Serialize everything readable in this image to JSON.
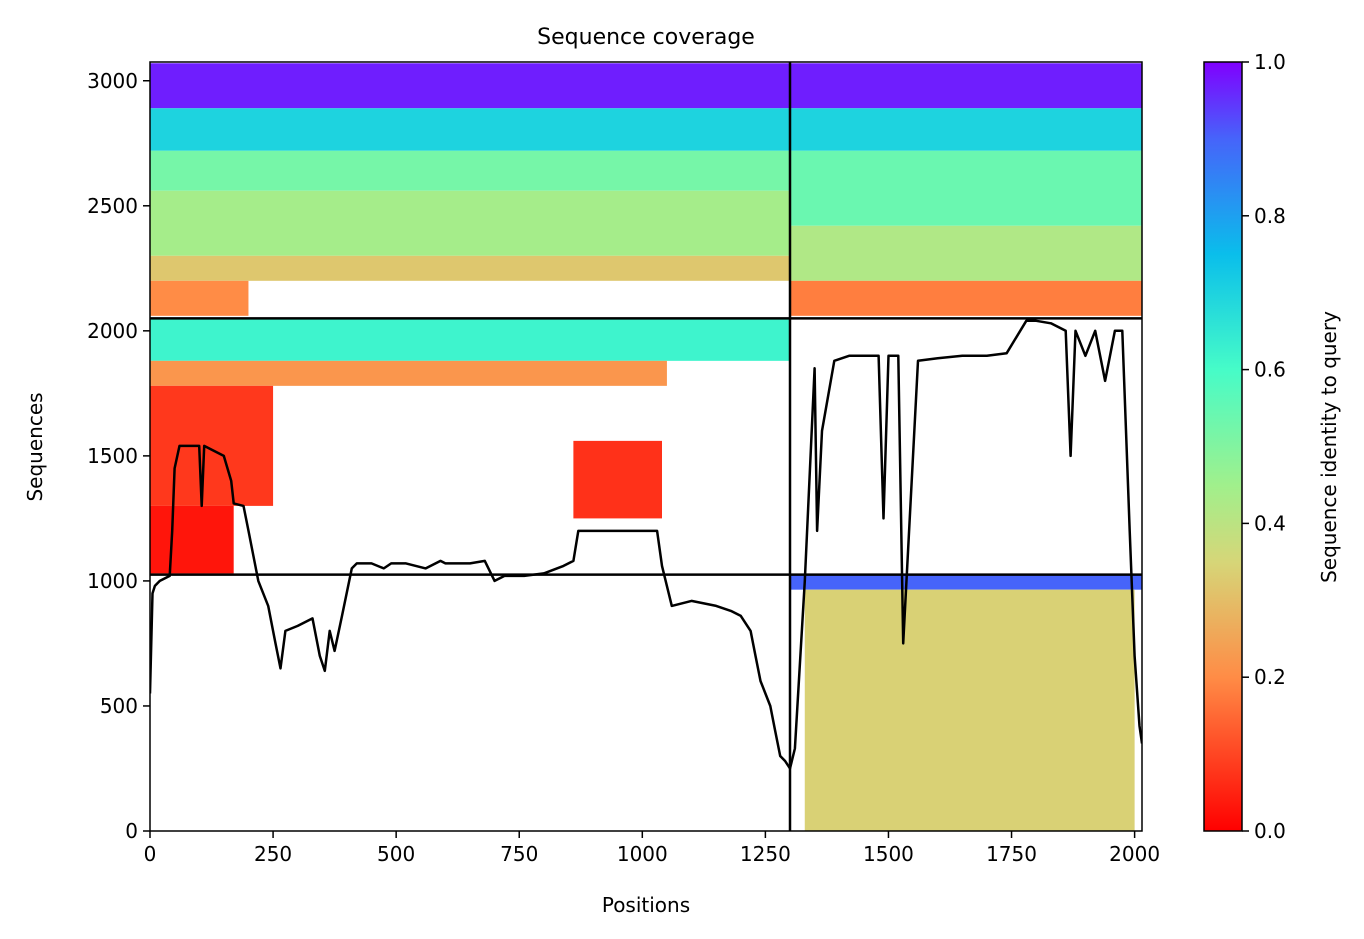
{
  "chart_data": {
    "type": "heatmap",
    "title": "Sequence coverage",
    "xlabel": "Positions",
    "ylabel": "Sequences",
    "xlim": [
      0,
      2015
    ],
    "ylim": [
      0,
      3075
    ],
    "x_ticks": [
      0,
      250,
      500,
      750,
      1000,
      1250,
      1500,
      1750,
      2000
    ],
    "y_ticks": [
      0,
      500,
      1000,
      1500,
      2000,
      2500,
      3000
    ],
    "colorbar": {
      "label": "Sequence identity to query",
      "range": [
        0,
        1
      ],
      "ticks": [
        "0.0",
        "0.2",
        "0.4",
        "0.6",
        "0.8",
        "1.0"
      ],
      "colormap": "rainbow_r"
    },
    "dividers": {
      "vertical_x": 1300,
      "horizontal_y": [
        1025,
        2050
      ]
    },
    "coverage_blocks": [
      {
        "x0": 0,
        "x1": 1300,
        "y0": 2890,
        "y1": 3070,
        "identity": 0.97
      },
      {
        "x0": 0,
        "x1": 1300,
        "y0": 2720,
        "y1": 2890,
        "identity": 0.7
      },
      {
        "x0": 0,
        "x1": 1300,
        "y0": 2560,
        "y1": 2720,
        "identity": 0.52
      },
      {
        "x0": 0,
        "x1": 1300,
        "y0": 2300,
        "y1": 2560,
        "identity": 0.44
      },
      {
        "x0": 0,
        "x1": 1300,
        "y0": 2200,
        "y1": 2300,
        "identity": 0.32
      },
      {
        "x0": 0,
        "x1": 200,
        "y0": 2060,
        "y1": 2200,
        "identity": 0.2
      },
      {
        "x0": 0,
        "x1": 1300,
        "y0": 1880,
        "y1": 2050,
        "identity": 0.62
      },
      {
        "x0": 0,
        "x1": 1050,
        "y0": 1780,
        "y1": 1880,
        "identity": 0.22
      },
      {
        "x0": 0,
        "x1": 250,
        "y0": 1300,
        "y1": 1780,
        "identity": 0.08
      },
      {
        "x0": 0,
        "x1": 170,
        "y0": 1030,
        "y1": 1300,
        "identity": 0.03
      },
      {
        "x0": 860,
        "x1": 1040,
        "y0": 1250,
        "y1": 1560,
        "identity": 0.07
      },
      {
        "x0": 1300,
        "x1": 2015,
        "y0": 2890,
        "y1": 3070,
        "identity": 0.97
      },
      {
        "x0": 1300,
        "x1": 2015,
        "y0": 2720,
        "y1": 2890,
        "identity": 0.7
      },
      {
        "x0": 1300,
        "x1": 2015,
        "y0": 2420,
        "y1": 2720,
        "identity": 0.54
      },
      {
        "x0": 1300,
        "x1": 2015,
        "y0": 2200,
        "y1": 2420,
        "identity": 0.42
      },
      {
        "x0": 1300,
        "x1": 2015,
        "y0": 2060,
        "y1": 2200,
        "identity": 0.18
      },
      {
        "x0": 1300,
        "x1": 2015,
        "y0": 965,
        "y1": 1025,
        "identity": 0.9
      },
      {
        "x0": 1330,
        "x1": 2000,
        "y0": 0,
        "y1": 965,
        "identity": 0.34
      }
    ],
    "coverage_line": {
      "x": [
        0,
        5,
        10,
        20,
        30,
        40,
        45,
        50,
        60,
        80,
        100,
        105,
        110,
        120,
        150,
        165,
        170,
        190,
        200,
        220,
        240,
        255,
        265,
        275,
        300,
        330,
        345,
        355,
        365,
        375,
        390,
        410,
        420,
        450,
        475,
        490,
        520,
        560,
        590,
        600,
        620,
        650,
        680,
        700,
        720,
        760,
        800,
        840,
        860,
        870,
        900,
        950,
        1000,
        1030,
        1040,
        1060,
        1100,
        1150,
        1180,
        1200,
        1220,
        1230,
        1240,
        1250,
        1260,
        1270,
        1280,
        1290,
        1300,
        1310,
        1330,
        1350,
        1355,
        1365,
        1390,
        1420,
        1450,
        1480,
        1490,
        1500,
        1520,
        1530,
        1560,
        1600,
        1650,
        1700,
        1740,
        1780,
        1800,
        1830,
        1860,
        1870,
        1880,
        1900,
        1920,
        1940,
        1960,
        1975,
        1990,
        2000,
        2010,
        2015
      ],
      "y": [
        550,
        950,
        980,
        1000,
        1010,
        1020,
        1200,
        1450,
        1540,
        1540,
        1540,
        1300,
        1540,
        1530,
        1500,
        1400,
        1310,
        1300,
        1200,
        1000,
        900,
        750,
        650,
        800,
        820,
        850,
        700,
        640,
        800,
        720,
        860,
        1050,
        1070,
        1070,
        1050,
        1070,
        1070,
        1050,
        1080,
        1070,
        1070,
        1070,
        1080,
        1000,
        1020,
        1020,
        1030,
        1060,
        1080,
        1200,
        1200,
        1200,
        1200,
        1200,
        1060,
        900,
        920,
        900,
        880,
        860,
        800,
        700,
        600,
        550,
        500,
        400,
        300,
        280,
        250,
        330,
        1000,
        1850,
        1200,
        1600,
        1880,
        1900,
        1900,
        1900,
        1250,
        1900,
        1900,
        750,
        1880,
        1890,
        1900,
        1900,
        1910,
        2040,
        2040,
        2030,
        2000,
        1500,
        2000,
        1900,
        2000,
        1800,
        2000,
        2000,
        1200,
        700,
        420,
        350
      ]
    }
  }
}
